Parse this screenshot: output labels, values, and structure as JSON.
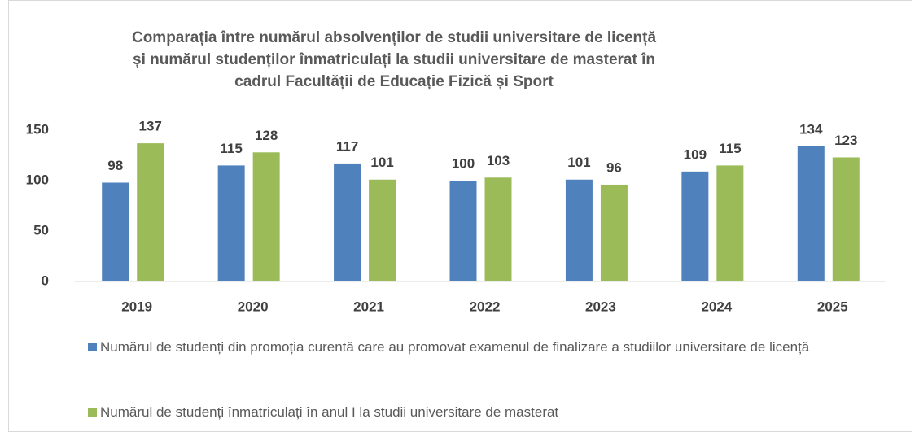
{
  "chart_data": {
    "type": "bar",
    "title": "Comparația între numărul absolvenților de studii universitare de licență și numărul studenților înmatriculați la studii universitare de masterat în cadrul Facultății de Educație Fizică și Sport",
    "categories": [
      "2019",
      "2020",
      "2021",
      "2022",
      "2023",
      "2024",
      "2025"
    ],
    "series": [
      {
        "name": "Numărul de studenți din promoția curentă care au promovat examenul de finalizare a studiilor universitare de licență",
        "color": "#4f81bd",
        "values": [
          98,
          115,
          117,
          100,
          101,
          109,
          134
        ]
      },
      {
        "name": "Numărul de studenți înmatriculați în anul I la studii universitare de masterat",
        "color": "#9bbb59",
        "values": [
          137,
          128,
          101,
          103,
          96,
          115,
          123
        ]
      }
    ],
    "ylim": [
      0,
      150
    ],
    "yticks": [
      0,
      50,
      100,
      150
    ],
    "grid": false,
    "legend": "bottom"
  }
}
